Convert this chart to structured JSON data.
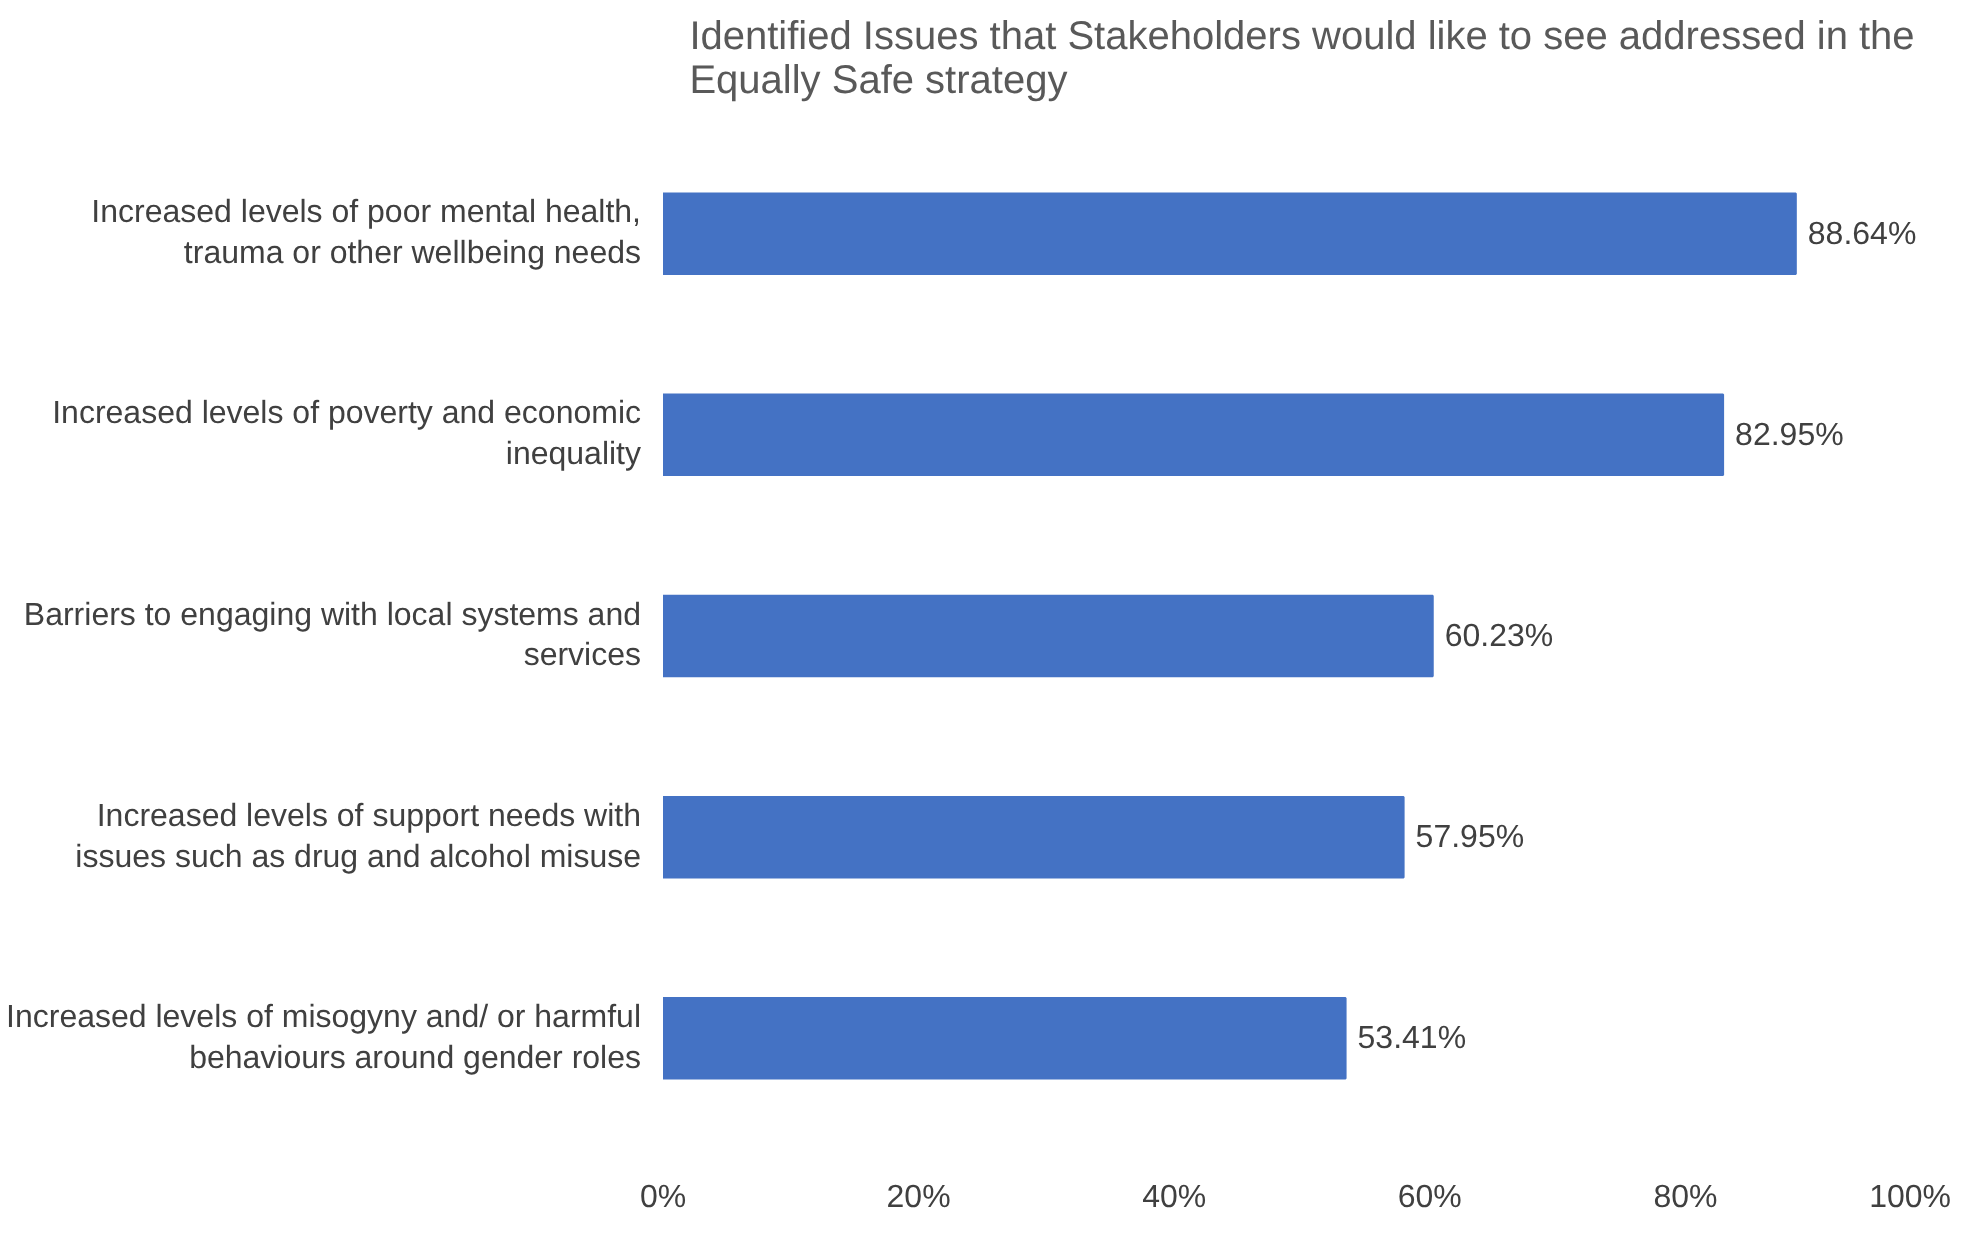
{
  "chart_data": {
    "type": "bar",
    "orientation": "horizontal",
    "title": "Identified Issues that Stakeholders would like to see addressed in the Equally Safe strategy",
    "categories": [
      "Increased levels of poor mental health, trauma or other wellbeing needs",
      "Increased levels of poverty and economic inequality",
      "Barriers to engaging with local systems and services",
      "Increased levels of support needs with issues such as drug and alcohol misuse",
      "Increased levels of misogyny and/ or harmful behaviours around gender roles"
    ],
    "values": [
      88.64,
      82.95,
      60.23,
      57.95,
      53.41
    ],
    "value_labels": [
      "88.64%",
      "82.95%",
      "60.23%",
      "57.95%",
      "53.41%"
    ],
    "color": "#4472c4",
    "xlim": [
      0,
      100
    ],
    "xticks": [
      {
        "value": 0,
        "label": "0%"
      },
      {
        "value": 20,
        "label": "20%"
      },
      {
        "value": 40,
        "label": "40%"
      },
      {
        "value": 60,
        "label": "60%"
      },
      {
        "value": 80,
        "label": "80%"
      },
      {
        "value": 100,
        "label": "100%"
      }
    ],
    "grid": false
  }
}
